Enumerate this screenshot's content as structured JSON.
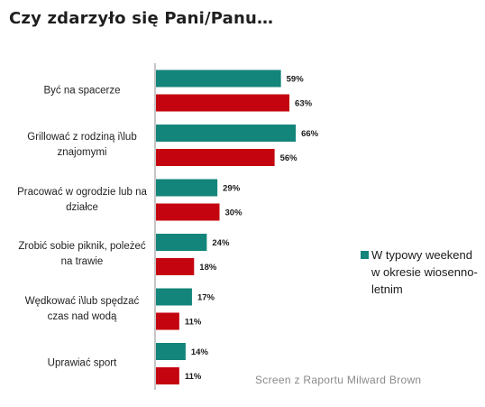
{
  "title": "Czy zdarzyło się Pani/Panu…",
  "source_note": "Screen z Raportu Milward Brown",
  "chart_data": {
    "type": "bar",
    "orientation": "horizontal",
    "categories": [
      "Być na spacerze",
      "Grillować z rodziną i\\lub znajomymi",
      "Pracować w ogrodzie lub na działce",
      "Zrobić sobie piknik, poleżeć na trawie",
      "Wędkować i\\lub spędzać czas nad wodą",
      "Uprawiać sport"
    ],
    "series": [
      {
        "name": "W typowy weekend w okresie wiosenno-letnim",
        "color": "#14857a",
        "values": [
          59,
          66,
          29,
          24,
          17,
          14
        ],
        "labels": [
          "59%",
          "66%",
          "29%",
          "24%",
          "17%",
          "14%"
        ]
      },
      {
        "color": "#c4040e",
        "values": [
          63,
          56,
          30,
          18,
          11,
          11
        ],
        "labels": [
          "63%",
          "56%",
          "30%",
          "18%",
          "11%",
          "11%"
        ]
      }
    ],
    "xlim": [
      0,
      100
    ],
    "grid": false,
    "legend_position": "right"
  }
}
